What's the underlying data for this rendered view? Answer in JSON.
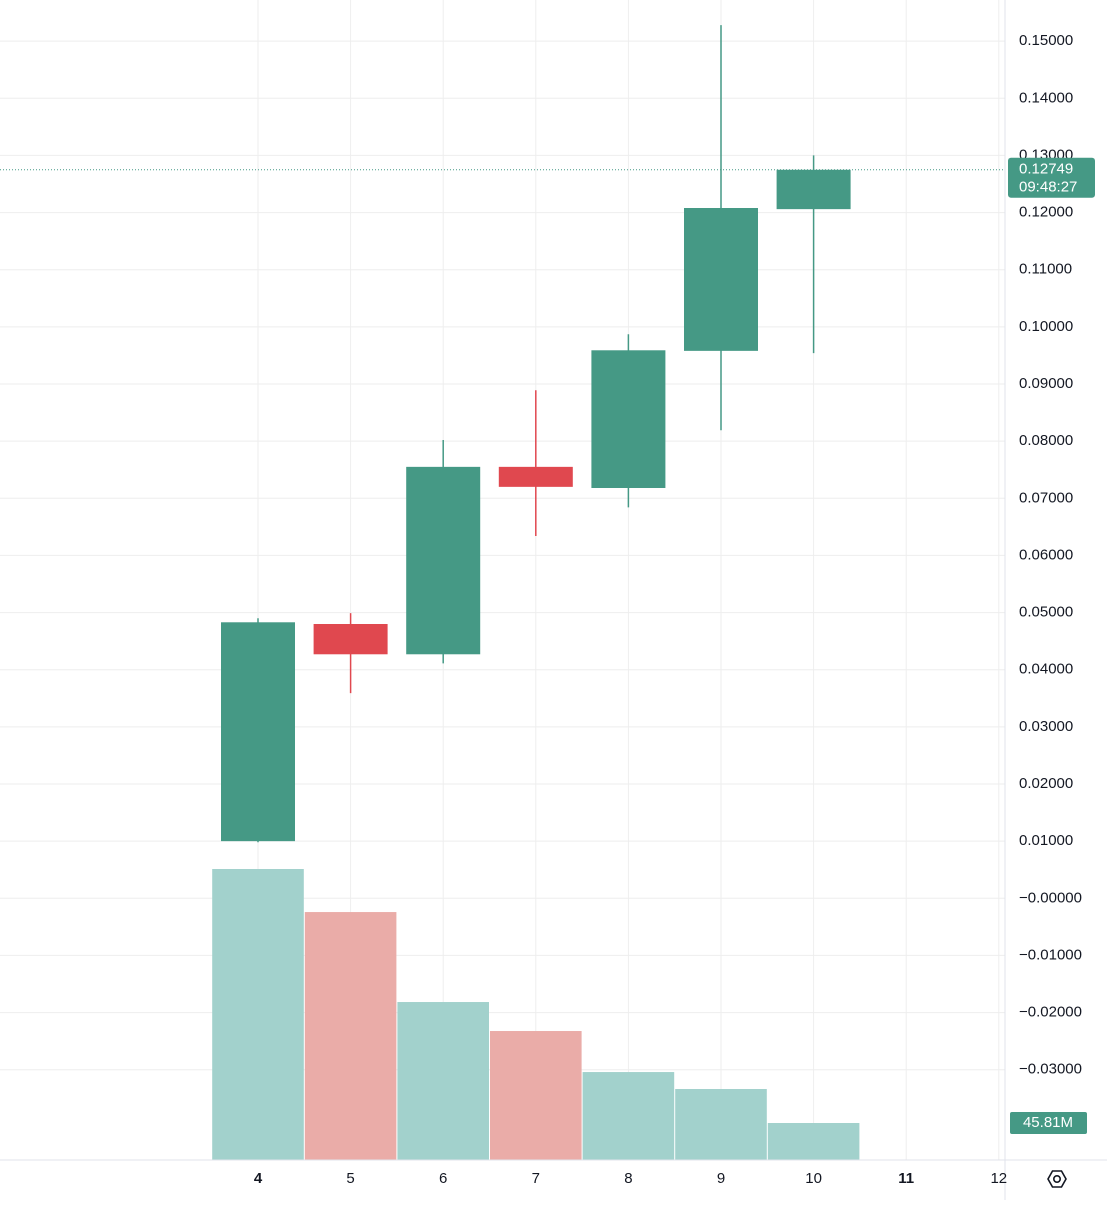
{
  "chart_data": {
    "type": "candlestick",
    "categories": [
      "4",
      "5",
      "6",
      "7",
      "8",
      "9",
      "10",
      "11",
      "12"
    ],
    "bold_ticks": [
      0,
      7
    ],
    "open": [
      0.01,
      0.048,
      0.0427,
      0.0755,
      0.0718,
      0.0958,
      0.1206,
      null,
      null
    ],
    "high": [
      0.049,
      0.0499,
      0.0802,
      0.0889,
      0.0987,
      0.1528,
      0.13,
      null,
      null
    ],
    "low": [
      0.0098,
      0.0359,
      0.0411,
      0.0634,
      0.0684,
      0.0819,
      0.0954,
      null,
      null
    ],
    "close": [
      0.0483,
      0.0427,
      0.0755,
      0.072,
      0.0959,
      0.1208,
      0.12749,
      null,
      null
    ],
    "up_color": "#459985",
    "down_color": "#e0484f",
    "volume": {
      "values": [
        360.3,
        307.0,
        195.6,
        159.7,
        108.9,
        87.9,
        45.81,
        null,
        null
      ],
      "value_labels": [
        null,
        null,
        null,
        null,
        null,
        null,
        "45.81M",
        null,
        null
      ],
      "up_color": "#a2d1cc",
      "down_color": "#eaaca8"
    },
    "last_price": {
      "value": 0.12749,
      "label": "0.12749"
    },
    "countdown": "09:48:27",
    "ylim": [
      -0.0458,
      0.1572
    ],
    "yticks": [
      {
        "value": 0.15,
        "label": "0.15000"
      },
      {
        "value": 0.14,
        "label": "0.14000"
      },
      {
        "value": 0.13,
        "label": "0.13000"
      },
      {
        "value": 0.12,
        "label": "0.12000"
      },
      {
        "value": 0.11,
        "label": "0.11000"
      },
      {
        "value": 0.1,
        "label": "0.10000"
      },
      {
        "value": 0.09,
        "label": "0.09000"
      },
      {
        "value": 0.08,
        "label": "0.08000"
      },
      {
        "value": 0.07,
        "label": "0.07000"
      },
      {
        "value": 0.06,
        "label": "0.06000"
      },
      {
        "value": 0.05,
        "label": "0.05000"
      },
      {
        "value": 0.04,
        "label": "0.04000"
      },
      {
        "value": 0.03,
        "label": "0.03000"
      },
      {
        "value": 0.02,
        "label": "0.02000"
      },
      {
        "value": 0.01,
        "label": "0.01000"
      },
      {
        "value": 0.0,
        "label": "−0.00000"
      },
      {
        "value": -0.01,
        "label": "−0.01000"
      },
      {
        "value": -0.02,
        "label": "−0.02000"
      },
      {
        "value": -0.03,
        "label": "−0.03000"
      }
    ],
    "grid": true
  }
}
